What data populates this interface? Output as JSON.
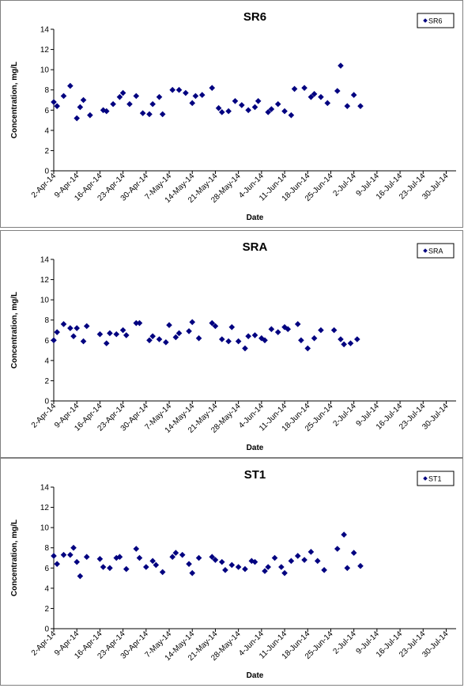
{
  "chart_data": [
    {
      "type": "scatter",
      "title": "SR6",
      "xlabel": "Date",
      "ylabel": "Concentration, mg/L",
      "ylim": [
        0,
        14
      ],
      "yticks": [
        0,
        2,
        4,
        6,
        8,
        10,
        12,
        14
      ],
      "xlim": [
        "2014-04-02",
        "2014-08-02"
      ],
      "xticks": [
        "2-Apr-14",
        "9-Apr-14",
        "16-Apr-14",
        "23-Apr-14",
        "30-Apr-14",
        "7-May-14",
        "14-May-14",
        "21-May-14",
        "28-May-14",
        "4-Jun-14",
        "11-Jun-14",
        "18-Jun-14",
        "25-Jun-14",
        "2-Jul-14",
        "9-Jul-14",
        "16-Jul-14",
        "23-Jul-14",
        "30-Jul-14"
      ],
      "grid": false,
      "legend_position": "top-right",
      "series": [
        {
          "name": "SR6",
          "color": "#000080",
          "marker": "diamond",
          "points": [
            {
              "x": "2014-04-02",
              "y": 6.8
            },
            {
              "x": "2014-04-03",
              "y": 6.4
            },
            {
              "x": "2014-04-05",
              "y": 7.4
            },
            {
              "x": "2014-04-07",
              "y": 8.4
            },
            {
              "x": "2014-04-09",
              "y": 5.2
            },
            {
              "x": "2014-04-10",
              "y": 6.3
            },
            {
              "x": "2014-04-11",
              "y": 7.0
            },
            {
              "x": "2014-04-13",
              "y": 5.5
            },
            {
              "x": "2014-04-17",
              "y": 6.0
            },
            {
              "x": "2014-04-18",
              "y": 5.9
            },
            {
              "x": "2014-04-20",
              "y": 6.6
            },
            {
              "x": "2014-04-22",
              "y": 7.3
            },
            {
              "x": "2014-04-23",
              "y": 7.7
            },
            {
              "x": "2014-04-25",
              "y": 6.6
            },
            {
              "x": "2014-04-27",
              "y": 7.4
            },
            {
              "x": "2014-04-29",
              "y": 5.7
            },
            {
              "x": "2014-05-01",
              "y": 5.6
            },
            {
              "x": "2014-05-02",
              "y": 6.6
            },
            {
              "x": "2014-05-04",
              "y": 7.3
            },
            {
              "x": "2014-05-05",
              "y": 5.6
            },
            {
              "x": "2014-05-08",
              "y": 8.0
            },
            {
              "x": "2014-05-10",
              "y": 8.0
            },
            {
              "x": "2014-05-12",
              "y": 7.7
            },
            {
              "x": "2014-05-14",
              "y": 6.7
            },
            {
              "x": "2014-05-15",
              "y": 7.4
            },
            {
              "x": "2014-05-17",
              "y": 7.5
            },
            {
              "x": "2014-05-20",
              "y": 8.2
            },
            {
              "x": "2014-05-22",
              "y": 6.2
            },
            {
              "x": "2014-05-23",
              "y": 5.8
            },
            {
              "x": "2014-05-25",
              "y": 5.9
            },
            {
              "x": "2014-05-27",
              "y": 6.9
            },
            {
              "x": "2014-05-29",
              "y": 6.5
            },
            {
              "x": "2014-05-31",
              "y": 6.0
            },
            {
              "x": "2014-06-02",
              "y": 6.3
            },
            {
              "x": "2014-06-03",
              "y": 6.9
            },
            {
              "x": "2014-06-06",
              "y": 5.8
            },
            {
              "x": "2014-06-07",
              "y": 6.1
            },
            {
              "x": "2014-06-09",
              "y": 6.6
            },
            {
              "x": "2014-06-11",
              "y": 5.9
            },
            {
              "x": "2014-06-13",
              "y": 5.5
            },
            {
              "x": "2014-06-14",
              "y": 8.1
            },
            {
              "x": "2014-06-17",
              "y": 8.2
            },
            {
              "x": "2014-06-19",
              "y": 7.3
            },
            {
              "x": "2014-06-20",
              "y": 7.6
            },
            {
              "x": "2014-06-22",
              "y": 7.3
            },
            {
              "x": "2014-06-24",
              "y": 6.7
            },
            {
              "x": "2014-06-27",
              "y": 7.9
            },
            {
              "x": "2014-06-28",
              "y": 10.4
            },
            {
              "x": "2014-06-30",
              "y": 6.4
            },
            {
              "x": "2014-07-02",
              "y": 7.5
            },
            {
              "x": "2014-07-04",
              "y": 6.4
            }
          ]
        }
      ]
    },
    {
      "type": "scatter",
      "title": "SRA",
      "xlabel": "Date",
      "ylabel": "Concentration, mg/L",
      "ylim": [
        0,
        14
      ],
      "yticks": [
        0,
        2,
        4,
        6,
        8,
        10,
        12,
        14
      ],
      "xlim": [
        "2014-04-02",
        "2014-08-02"
      ],
      "xticks": [
        "2-Apr-14",
        "9-Apr-14",
        "16-Apr-14",
        "23-Apr-14",
        "30-Apr-14",
        "7-May-14",
        "14-May-14",
        "21-May-14",
        "28-May-14",
        "4-Jun-14",
        "11-Jun-14",
        "18-Jun-14",
        "25-Jun-14",
        "2-Jul-14",
        "9-Jul-14",
        "16-Jul-14",
        "23-Jul-14",
        "30-Jul-14"
      ],
      "grid": false,
      "legend_position": "top-right",
      "series": [
        {
          "name": "SRA",
          "color": "#000080",
          "marker": "diamond",
          "points": [
            {
              "x": "2014-04-02",
              "y": 6.0
            },
            {
              "x": "2014-04-03",
              "y": 6.8
            },
            {
              "x": "2014-04-05",
              "y": 7.6
            },
            {
              "x": "2014-04-07",
              "y": 7.2
            },
            {
              "x": "2014-04-08",
              "y": 6.4
            },
            {
              "x": "2014-04-09",
              "y": 7.2
            },
            {
              "x": "2014-04-11",
              "y": 5.9
            },
            {
              "x": "2014-04-12",
              "y": 7.4
            },
            {
              "x": "2014-04-16",
              "y": 6.6
            },
            {
              "x": "2014-04-18",
              "y": 5.7
            },
            {
              "x": "2014-04-19",
              "y": 6.7
            },
            {
              "x": "2014-04-21",
              "y": 6.6
            },
            {
              "x": "2014-04-23",
              "y": 7.0
            },
            {
              "x": "2014-04-24",
              "y": 6.5
            },
            {
              "x": "2014-04-27",
              "y": 7.7
            },
            {
              "x": "2014-04-28",
              "y": 7.7
            },
            {
              "x": "2014-05-01",
              "y": 6.0
            },
            {
              "x": "2014-05-02",
              "y": 6.4
            },
            {
              "x": "2014-05-04",
              "y": 6.1
            },
            {
              "x": "2014-05-06",
              "y": 5.8
            },
            {
              "x": "2014-05-07",
              "y": 7.5
            },
            {
              "x": "2014-05-09",
              "y": 6.3
            },
            {
              "x": "2014-05-10",
              "y": 6.7
            },
            {
              "x": "2014-05-13",
              "y": 6.9
            },
            {
              "x": "2014-05-14",
              "y": 7.8
            },
            {
              "x": "2014-05-16",
              "y": 6.2
            },
            {
              "x": "2014-05-20",
              "y": 7.7
            },
            {
              "x": "2014-05-21",
              "y": 7.4
            },
            {
              "x": "2014-05-23",
              "y": 6.1
            },
            {
              "x": "2014-05-25",
              "y": 5.9
            },
            {
              "x": "2014-05-26",
              "y": 7.3
            },
            {
              "x": "2014-05-28",
              "y": 5.9
            },
            {
              "x": "2014-05-30",
              "y": 5.2
            },
            {
              "x": "2014-05-31",
              "y": 6.4
            },
            {
              "x": "2014-06-02",
              "y": 6.5
            },
            {
              "x": "2014-06-04",
              "y": 6.2
            },
            {
              "x": "2014-06-05",
              "y": 6.0
            },
            {
              "x": "2014-06-07",
              "y": 7.1
            },
            {
              "x": "2014-06-09",
              "y": 6.8
            },
            {
              "x": "2014-06-11",
              "y": 7.3
            },
            {
              "x": "2014-06-12",
              "y": 7.1
            },
            {
              "x": "2014-06-15",
              "y": 7.6
            },
            {
              "x": "2014-06-16",
              "y": 6.0
            },
            {
              "x": "2014-06-18",
              "y": 5.2
            },
            {
              "x": "2014-06-20",
              "y": 6.2
            },
            {
              "x": "2014-06-22",
              "y": 7.0
            },
            {
              "x": "2014-06-26",
              "y": 7.0
            },
            {
              "x": "2014-06-28",
              "y": 6.1
            },
            {
              "x": "2014-06-29",
              "y": 5.6
            },
            {
              "x": "2014-07-01",
              "y": 5.7
            },
            {
              "x": "2014-07-03",
              "y": 6.1
            }
          ]
        }
      ]
    },
    {
      "type": "scatter",
      "title": "ST1",
      "xlabel": "Date",
      "ylabel": "Concentration, mg/L",
      "ylim": [
        0,
        14
      ],
      "yticks": [
        0,
        2,
        4,
        6,
        8,
        10,
        12,
        14
      ],
      "xlim": [
        "2014-04-02",
        "2014-08-02"
      ],
      "xticks": [
        "2-Apr-14",
        "9-Apr-14",
        "16-Apr-14",
        "23-Apr-14",
        "30-Apr-14",
        "7-May-14",
        "14-May-14",
        "21-May-14",
        "28-May-14",
        "4-Jun-14",
        "11-Jun-14",
        "18-Jun-14",
        "25-Jun-14",
        "2-Jul-14",
        "9-Jul-14",
        "16-Jul-14",
        "23-Jul-14",
        "30-Jul-14"
      ],
      "grid": false,
      "legend_position": "top-right",
      "series": [
        {
          "name": "ST1",
          "color": "#000080",
          "marker": "diamond",
          "points": [
            {
              "x": "2014-04-02",
              "y": 7.2
            },
            {
              "x": "2014-04-03",
              "y": 6.4
            },
            {
              "x": "2014-04-05",
              "y": 7.3
            },
            {
              "x": "2014-04-07",
              "y": 7.3
            },
            {
              "x": "2014-04-08",
              "y": 8.0
            },
            {
              "x": "2014-04-09",
              "y": 6.6
            },
            {
              "x": "2014-04-10",
              "y": 5.2
            },
            {
              "x": "2014-04-12",
              "y": 7.1
            },
            {
              "x": "2014-04-16",
              "y": 6.9
            },
            {
              "x": "2014-04-17",
              "y": 6.1
            },
            {
              "x": "2014-04-19",
              "y": 6.0
            },
            {
              "x": "2014-04-21",
              "y": 7.0
            },
            {
              "x": "2014-04-22",
              "y": 7.1
            },
            {
              "x": "2014-04-24",
              "y": 5.9
            },
            {
              "x": "2014-04-27",
              "y": 7.9
            },
            {
              "x": "2014-04-28",
              "y": 7.0
            },
            {
              "x": "2014-04-30",
              "y": 6.1
            },
            {
              "x": "2014-05-02",
              "y": 6.7
            },
            {
              "x": "2014-05-03",
              "y": 6.3
            },
            {
              "x": "2014-05-05",
              "y": 5.6
            },
            {
              "x": "2014-05-08",
              "y": 7.1
            },
            {
              "x": "2014-05-09",
              "y": 7.5
            },
            {
              "x": "2014-05-11",
              "y": 7.3
            },
            {
              "x": "2014-05-13",
              "y": 6.4
            },
            {
              "x": "2014-05-14",
              "y": 5.5
            },
            {
              "x": "2014-05-16",
              "y": 7.0
            },
            {
              "x": "2014-05-20",
              "y": 7.1
            },
            {
              "x": "2014-05-21",
              "y": 6.8
            },
            {
              "x": "2014-05-23",
              "y": 6.6
            },
            {
              "x": "2014-05-24",
              "y": 5.8
            },
            {
              "x": "2014-05-26",
              "y": 6.3
            },
            {
              "x": "2014-05-28",
              "y": 6.1
            },
            {
              "x": "2014-05-30",
              "y": 5.9
            },
            {
              "x": "2014-06-01",
              "y": 6.7
            },
            {
              "x": "2014-06-02",
              "y": 6.6
            },
            {
              "x": "2014-06-05",
              "y": 5.7
            },
            {
              "x": "2014-06-06",
              "y": 6.1
            },
            {
              "x": "2014-06-08",
              "y": 7.0
            },
            {
              "x": "2014-06-10",
              "y": 6.1
            },
            {
              "x": "2014-06-11",
              "y": 5.5
            },
            {
              "x": "2014-06-13",
              "y": 6.7
            },
            {
              "x": "2014-06-15",
              "y": 7.2
            },
            {
              "x": "2014-06-17",
              "y": 6.8
            },
            {
              "x": "2014-06-19",
              "y": 7.6
            },
            {
              "x": "2014-06-21",
              "y": 6.7
            },
            {
              "x": "2014-06-23",
              "y": 5.8
            },
            {
              "x": "2014-06-27",
              "y": 7.9
            },
            {
              "x": "2014-06-29",
              "y": 9.3
            },
            {
              "x": "2014-06-30",
              "y": 6.0
            },
            {
              "x": "2014-07-02",
              "y": 7.5
            },
            {
              "x": "2014-07-04",
              "y": 6.2
            }
          ]
        }
      ]
    }
  ]
}
